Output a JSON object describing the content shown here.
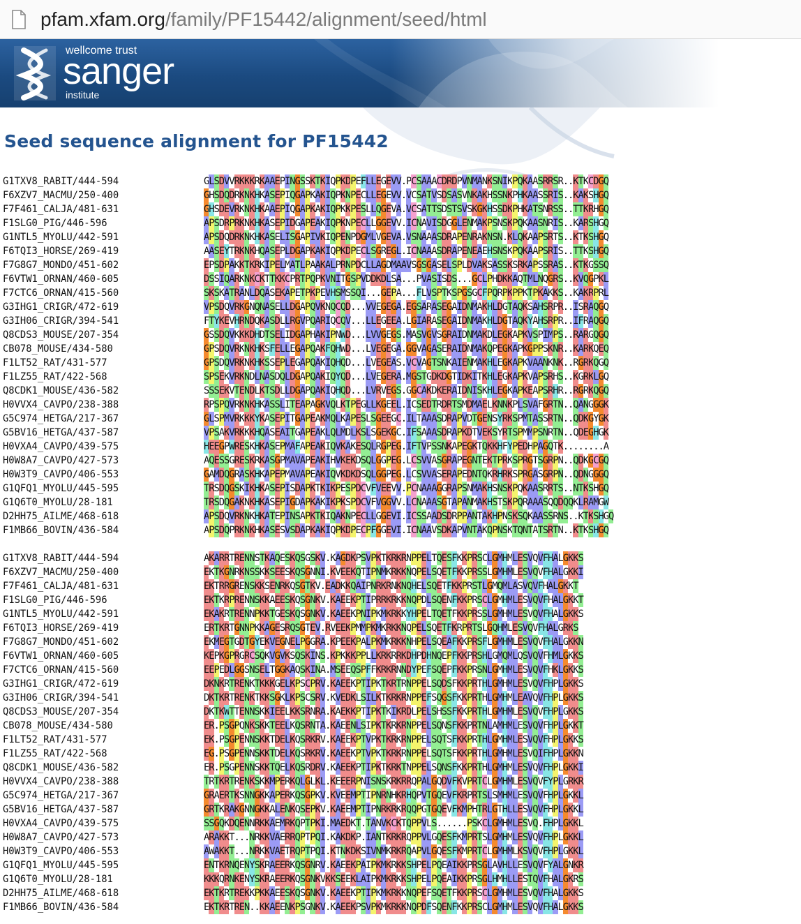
{
  "browser": {
    "url_host": "pfam.xfam.org",
    "url_path": "/family/PF15442/alignment/seed/html",
    "page_icon": "document-icon"
  },
  "banner": {
    "logo_small": "wellcome trust",
    "logo_big": "sanger",
    "logo_inst": "institute"
  },
  "title": "Seed sequence alignment for PF15442",
  "colors": {
    "hydrophobic": "#9b9bf5",
    "positive": "#f08c8c",
    "polar": "#93ee93",
    "glycine": "#f58a2e",
    "proline": "#f4f46c",
    "cysteine": "#f5a0ce",
    "aromatic": "#88e6e6"
  },
  "names": [
    "G1TXV8_RABIT/444-594",
    "F6XZV7_MACMU/250-400",
    "F7F461_CALJA/481-631",
    "F1SLG0_PIG/446-596",
    "G1NTL5_MYOLU/442-591",
    "F6TQI3_HORSE/269-419",
    "F7G8G7_MONDO/451-602",
    "F6VTW1_ORNAN/460-605",
    "F7CTC6_ORNAN/415-560",
    "G3IHG1_CRIGR/472-619",
    "G3IH06_CRIGR/394-541",
    "Q8CDS3_MOUSE/207-354",
    "CB078_MOUSE/434-580",
    "F1LT52_RAT/431-577",
    "F1LZ55_RAT/422-568",
    "Q8CDK1_MOUSE/436-582",
    "H0VVX4_CAVPO/238-388",
    "G5C974_HETGA/217-367",
    "G5BV16_HETGA/437-587",
    "H0VXA4_CAVPO/439-575",
    "H0W8A7_CAVPO/427-573",
    "H0W3T9_CAVPO/406-553",
    "G1QFQ1_MYOLU/445-595",
    "G1Q6T0_MYOLU/28-181",
    "D2HH75_AILME/468-618",
    "F1MB66_BOVIN/436-584"
  ],
  "block1": [
    "GLSDVVRKKKRKAAEPINGSSKTKIQPKDPEFLLEGEVV.PCSAAACDRDPVNMANKSNIKPQKAASRRSR..KTKCDGQ",
    "GHSDQDRKNKHKASEPIQGAPKAKIQPKNPECLLEGEVV.VCSATVSDSASVNKAKHSSNKPHKAASSRIS..KAKSHGQ",
    "GHSDEVRKNKHKAAEPIQGAPKAKIQPKKPESLLQGEVA.VCSATTSDSTSVSKGKHSSDKPHKATSNRSS..TTKRHGQ",
    "APSDRPRKNKHKASEPIDGAPEAKIQPKNPECLLGGEVV.ICNAVISDGGLENMAKPSNSKPQKAASNRIS..KARSHGQ",
    "APSDQDRKNKHKASELISGAPIVKIQPENPDGMLVGEVA.VSNAAASDRAPENRAKNSN.KLQKAAPSRTS..KTKSHGQ",
    "AASEYTRKNKHQASEPLDGAPKAKIQPKDPECLSGREGL.ICNAAASDRAPENEAEHSNSKPQKAAPSRIS..TTKSHGQ",
    "EPSDPAKKTKRKIPELMATLPAAKALPRNPDCLLAGDMAAVSGSGASELSPLDVAKSASSKSRKAPSSRAS..KTKGSSQ",
    "DSSIQARKNKCKTTKKCPRTPQPKVNITGSPVDDKDLSA...PVASISDS...GCLPHDKKAQTMLNQGRS..KVQGPKL",
    "SKSKATRANLDQASEKAPETPKPEVHSMSSQI...GEPA...FLVSPTKSPGSGCFPQRPKPPKTPKAKKS..KAKRPRL",
    "VPSDQVRKGNQNASELLDGAPQVKNQCQD...VVEGEGA.EGSARASEGAIDNMAKHLDGTAQKSAHSRPR..ISRAQGQ",
    "FTYKEVHRNDQKASDLLRGVPQARIQCQV...LLEGEEA.LGIARASEGAIDNMAKHLDGTAQKYAHSRPR..IFRAQGQ",
    "GSSDQVKKKDHDTSELIDGAPHAKIPNWD...LVVGEGS.MASVGVSGRAIDNMAKDLEGKAPKVSPIMPS..RARGQGQ",
    "GPSDQVRKNKHKSFELLEGAPQAKFQHWD...LVEGEGA.GGVAGASERAIDNMAKQPEGKAPKGPPSKNR..KARKQEQ",
    "GPSDQVRKNKHKSSEPLEGAPQAKIQHQD...LVEGEAS.VCVAGTSNKAIENMAKHLEGKAPKVAANKNK..RGRKQGQ",
    "SPSEKVRKNDLNASDQLDGAPQAKIQYQD...LVEGERA.MGSTGDKDGTIDKITKHLEGKAPKVAPSRHS..KGRKLGQ",
    "SSSEKVTENDLKTSDLLDGAPQAKIQHQD...LVRVEGS.GGCAKDKERAIDNISKHLEGKAPKEAPSRHR..RGRKQGQ",
    "RPSPQVRKNKHKASSLITEAPAGKVQLKTPEGLLKGEEL.ICSEDTRDRTSMDMAELKNNKPLSVAFGRTN..QANGGGK",
    "GLSPMVRKKKYKASEPITGAPEAKMQLKAPESLSGEEGC.ILTAAASDRAPVDTGENSYRKSPMTASSRTN..QDKGYGK",
    "VPSAKVRKKKHQASEAITGAPEAKLQLMDLKSLSGEKGC.IFSAAASDRAPKDTVEKSYRTSPMMPSNRTN..QDEGHGK",
    "HEEGPWRESKHKASEPMAFAPEAKIQVKAKESQLRGPEG.IFTVPSSNKAPEGKTQKKHFYPEDHPAGQTK........A",
    "AQESSGRESKRKASGPMAVAPEAKIHVKEKDSQLGGPEG.LCSVVASGRAPEGNTEKTPRKSPRGTSGRPN..QDKGCGQ",
    "GAMDQGRASKHKAPEPMAVAPEAKIQVKDKDSQLGGPEG.LCSVVASERAPEDNTQKRHRKSPRGASGRPN..QDNGGGQ",
    "TRSDQGSKIKHKASEPISDAPKTKIKPESPDCVFVEEVV.PCNAAAGGRAPSNMAKHSNSKPQKAASRRTS..NTKSHGQ",
    "TRSDQGAKNKHKASEPIGDAPKAKIKPKSPDCVFVGGVV.LCNAAASGTAPANMAKHSTSKPQRAAASQQDQQKLRAMGW",
    "APSDQVRKNKHKATEPINSAPKTKIQAKNPECLLGGEVI.ICSSAADSDRPPANTAKHPNSKSQKAASSRNS..KTKSHGQ",
    "APSDQPRKNKHKASESVSDAPKAKIQPKDPECPFGGEVI.ICNAAVSDKAPVNTAKQPNSKTQNTATSRTN..KTKSHGQ"
  ],
  "block2": [
    "AKARRTRENNSTKAQESKQSGSKV.KAGDKPSVPKTKRKRNPPELTQESFKKPRSCLGMHMLESVQVFHALGKKS",
    "EKTKGNRKNSSKKSEESKQSGNNI.KVEEKQTIPNMKRKKNQPELSQETFKKPRSSLGMHMLESVQVFHALGKKI",
    "EKTRRGRENSKKSENRKQSGTKV.EADKKQAIPNRKRNKNQHELSQETFKKPRSTLGMQMLASVQVFHALGKKT",
    "EKTKRPRENNSKKAEESKQSGNKV.KAEEKPTIPRRKRKKNQPDLSQENFKKPRSCLGMHMLESVQVFHALGKKT",
    "EKAKRTRENNPKKTGESKQSGNKV.KAEEKPNIPKMKRKKYHPELTQETFKKPRSSLGMHMLESVQVFHALGKKS",
    "ERTKRTGNNPKKAGESRQSGTEV.RVEEKPMMPKMKRKKNQPELSQETFKRPRTSLGQHMLESVQVFHALGRKS",
    "EKMEGTGDTGYEKVEGNELPGGRA.KPEEKPALPKMKRKKNHPELSQEAFKKPRSFLGMHMLESVQVFHALGKKN",
    "KEPKGPRGRCSQKVGVKSQSKINS.KPKKKPPLLKRKRRKDHPDHNQEPFKKPRSHLGMQMLQSVQVFHMLGKKS",
    "EEPEDLGGSNSELTGGKAQSKINA.MSEEQSPFFKRKRNNDYPEFSQEPFKKPRSNLGMHMLESVQVFHKLGKKS",
    "DKNKRTRENKTKKKGELKPSCPRV.KAEEKPTIPKTKRTRNPPELSQDSFKKPRTHLGMHMLESVQVFHPLGKKS",
    "DKTKRTRENKTKKSGKLKPSCSRV.KVEDKLSILKTKRKRNPPEFSQGSFKKPRTHLGMHMLEAVQVFHPLGKKS",
    "DKTKWTTENNSKKIEELKKSRNRA.KAEKKPTIPKTKIKRDLPELSHSSFKKPRTHLGMHMLESVQVFHPLGKKS",
    "ER.PSGPQNKSKKTEELKQSRNTA.KAEENLSIPKTKRKRNPPELSQNSFKKPRTNLAMHMLESVQVFHPLGKKT",
    "EK.PSGPENNSKKTDELKQSRKRV.KAEEKPTVPKTKRKRNPPELSQTSFKKPRTHLGMHMLESVQVFHPLGKKS",
    "EG.PSGPENNSKKTDELKQSRKRV.KAEEKPTVPKTKRKRNPPELSQTSFKKPRTHLGMHMLESVQIFHPLGKKN",
    "ER.PSGPENNSKKTQELKQSRDRV.KAEEKPTIPKTKRKTNPPELSQNSFKKPRTHLGMHMLESVQVFHPLGKKI",
    "TRTKRTRENKSKKMPERKQLGLKL.KEEERPNISNSKRKRRQPALGQDVFKVPRTCLGMHMLESVQVFYPLGRKR",
    "GRAERTKSNNGKKAPERKQSGPKV.KVEEMPTIPNRNHKRHQPVTGQEVFKRPRTSLSMHMLESVQVFHPLGKKL",
    "GRTKRAKGNNGKKALENKQSEPKV.KAEEMPTIPNRKRKRQQPGTGQEVFKMPHTRLGTHLLESVQVFHPLGKKL",
    "SSGQKDQENNRKKAEMRKQPTPKI.MAEDKT.TANVKCKTQPPVLS......PSKCLGMHMLESVQ.FHPLGKKL",
    "ARAKKT...NRKKVAERRQPTPQI.KAKDKP.IANTKRKRQPPVLGQESFKMPRTSLGMHMLESVQVFHPLGKKL",
    "AWAKKT...NRKKVAETRQPTPQI.KTNKDKSIVNMKRKRQAPVLGQESFKMPRTCLGMHMLKSVQVFHPLGKKL",
    "ENTKRNQENYSKRAEERKQSGNRV.KAEEKPAIPKMKRKKSHPELPQEAIKKPRSGLAVHLLESVQVFYALGNKR",
    "KKKQRNKENYSKRAEERKQSGNKVKKSEEKLAIPKMKRKKSHPELPQEAIKKPRSGLHMHLLESTQVFHALGKRS",
    "EKTKRTREKKPKKAEESKQSGNKV.KAEEKPTIPKMKRKKNQPEFSQETFKKPRSCLGMHMLESVQVFHALGKKS",
    "EKTKRTREN..KKAEENKPSGNKV.KAEEKPSVPKMKRKKNQPDFSQENFKKPRSCLGMHMLESVQVFHALGKKS"
  ]
}
